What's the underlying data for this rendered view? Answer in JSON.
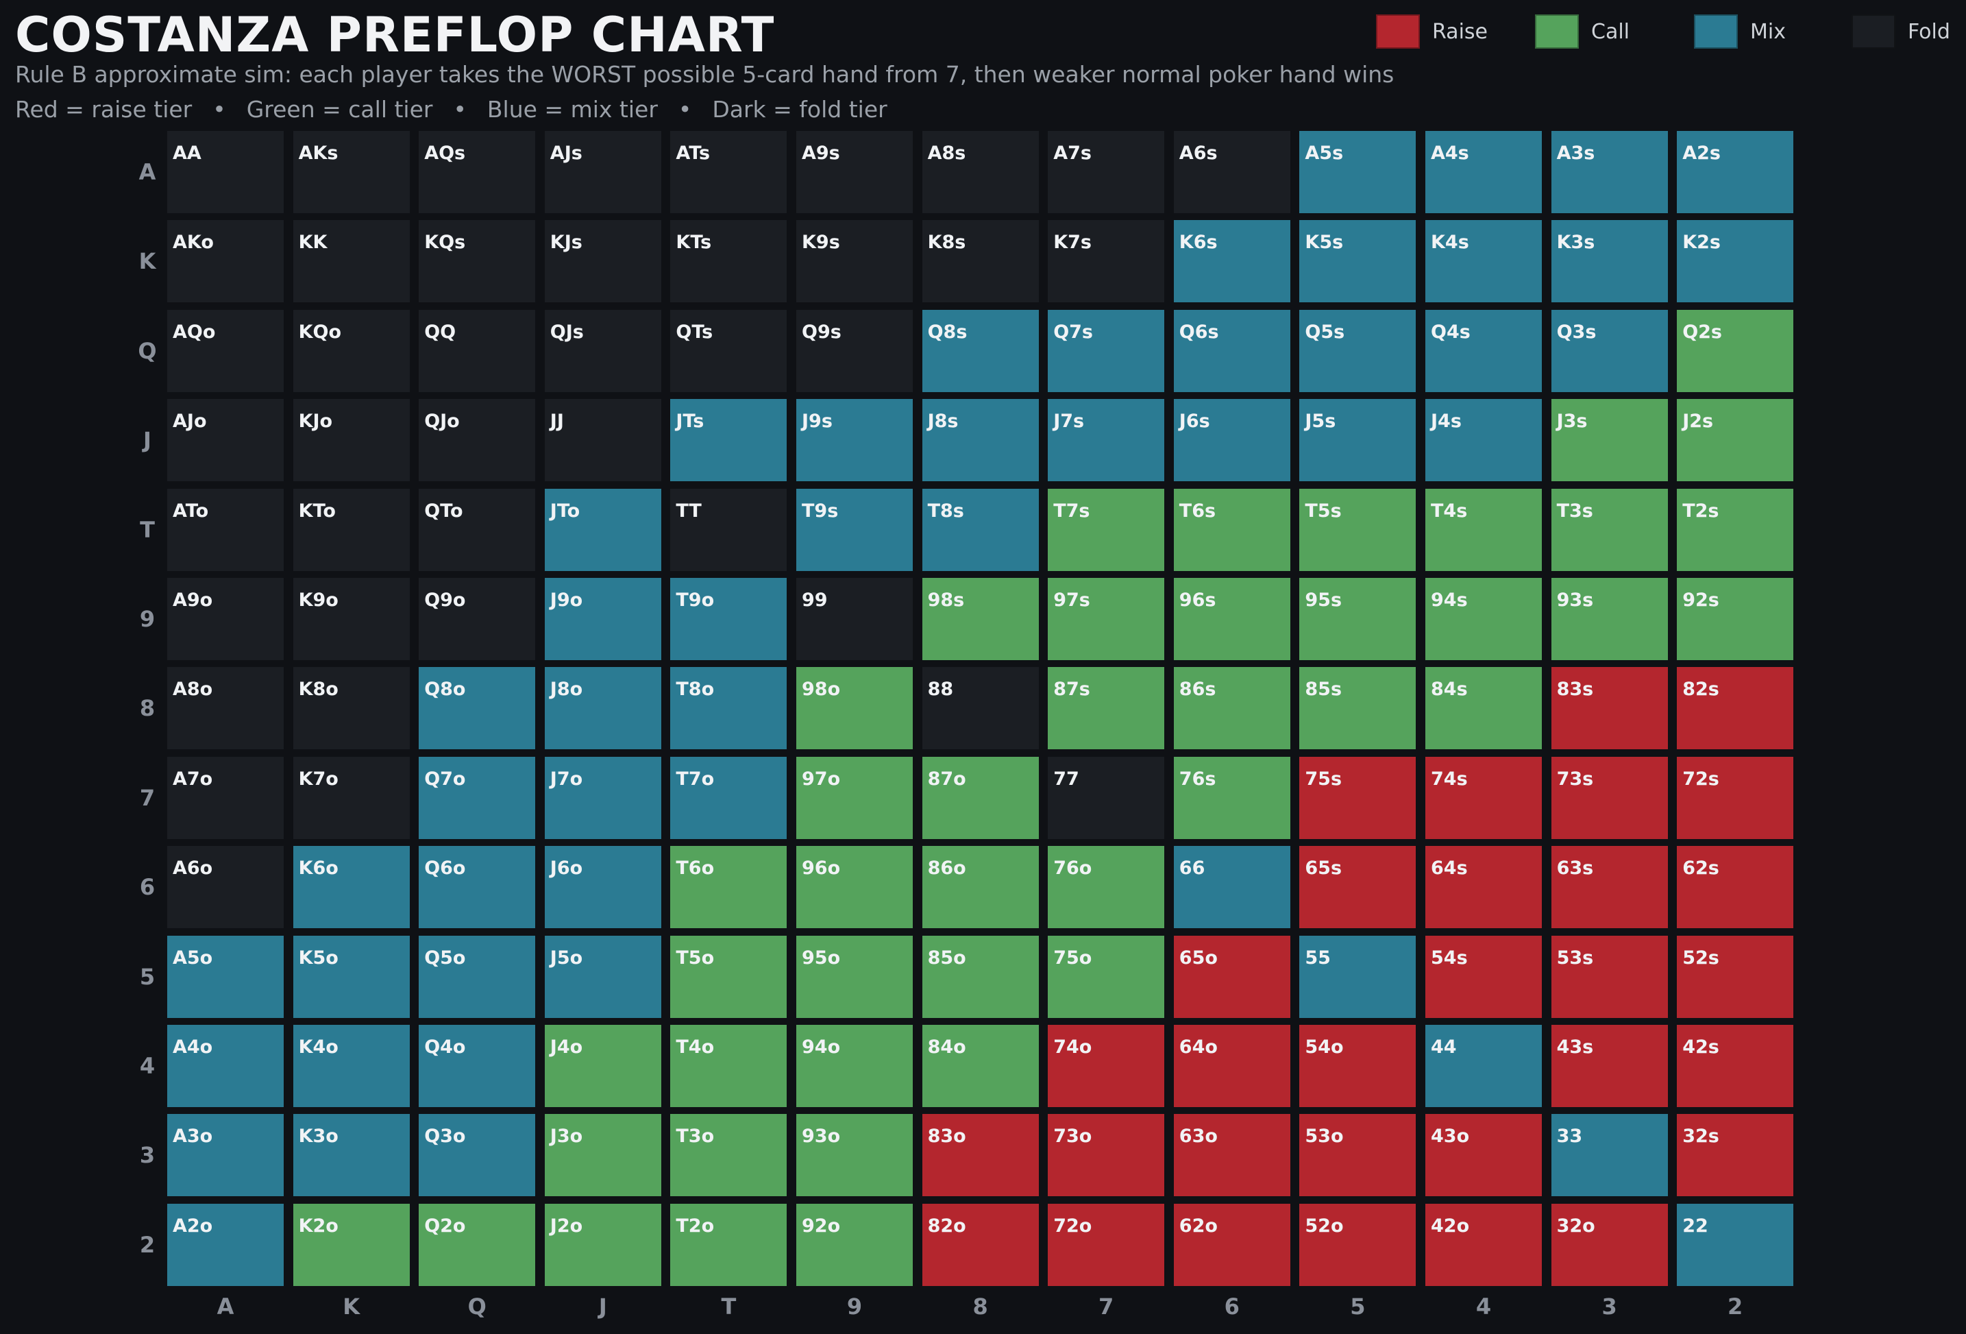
{
  "header": {
    "title": "COSTANZA PREFLOP CHART",
    "subtitle": "Rule B approximate sim: each player takes the WORST possible 5-card hand from 7, then weaker normal poker hand wins",
    "tier_desc": [
      "Red = raise tier",
      "Green = call tier",
      "Blue = mix tier",
      "Dark = fold tier"
    ],
    "separator": "•"
  },
  "legend": [
    {
      "key": "R",
      "label": "Raise"
    },
    {
      "key": "C",
      "label": "Call"
    },
    {
      "key": "M",
      "label": "Mix"
    },
    {
      "key": "F",
      "label": "Fold"
    }
  ],
  "colors": {
    "R": "#b4262e",
    "C": "#55a35c",
    "M": "#2b7b93",
    "F": "#1b1e23",
    "background": "#0f1115"
  },
  "chart_data": {
    "type": "heatmap",
    "title": "COSTANZA PREFLOP CHART",
    "row_labels": [
      "A",
      "K",
      "Q",
      "J",
      "T",
      "9",
      "8",
      "7",
      "6",
      "5",
      "4",
      "3",
      "2"
    ],
    "col_labels": [
      "A",
      "K",
      "Q",
      "J",
      "T",
      "9",
      "8",
      "7",
      "6",
      "5",
      "4",
      "3",
      "2"
    ],
    "tier_names": {
      "R": "Raise",
      "C": "Call",
      "M": "Mix",
      "F": "Fold"
    },
    "hands": [
      [
        "AA",
        "AKs",
        "AQs",
        "AJs",
        "ATs",
        "A9s",
        "A8s",
        "A7s",
        "A6s",
        "A5s",
        "A4s",
        "A3s",
        "A2s"
      ],
      [
        "AKo",
        "KK",
        "KQs",
        "KJs",
        "KTs",
        "K9s",
        "K8s",
        "K7s",
        "K6s",
        "K5s",
        "K4s",
        "K3s",
        "K2s"
      ],
      [
        "AQo",
        "KQo",
        "QQ",
        "QJs",
        "QTs",
        "Q9s",
        "Q8s",
        "Q7s",
        "Q6s",
        "Q5s",
        "Q4s",
        "Q3s",
        "Q2s"
      ],
      [
        "AJo",
        "KJo",
        "QJo",
        "JJ",
        "JTs",
        "J9s",
        "J8s",
        "J7s",
        "J6s",
        "J5s",
        "J4s",
        "J3s",
        "J2s"
      ],
      [
        "ATo",
        "KTo",
        "QTo",
        "JTo",
        "TT",
        "T9s",
        "T8s",
        "T7s",
        "T6s",
        "T5s",
        "T4s",
        "T3s",
        "T2s"
      ],
      [
        "A9o",
        "K9o",
        "Q9o",
        "J9o",
        "T9o",
        "99",
        "98s",
        "97s",
        "96s",
        "95s",
        "94s",
        "93s",
        "92s"
      ],
      [
        "A8o",
        "K8o",
        "Q8o",
        "J8o",
        "T8o",
        "98o",
        "88",
        "87s",
        "86s",
        "85s",
        "84s",
        "83s",
        "82s"
      ],
      [
        "A7o",
        "K7o",
        "Q7o",
        "J7o",
        "T7o",
        "97o",
        "87o",
        "77",
        "76s",
        "75s",
        "74s",
        "73s",
        "72s"
      ],
      [
        "A6o",
        "K6o",
        "Q6o",
        "J6o",
        "T6o",
        "96o",
        "86o",
        "76o",
        "66",
        "65s",
        "64s",
        "63s",
        "62s"
      ],
      [
        "A5o",
        "K5o",
        "Q5o",
        "J5o",
        "T5o",
        "95o",
        "85o",
        "75o",
        "65o",
        "55",
        "54s",
        "53s",
        "52s"
      ],
      [
        "A4o",
        "K4o",
        "Q4o",
        "J4o",
        "T4o",
        "94o",
        "84o",
        "74o",
        "64o",
        "54o",
        "44",
        "43s",
        "42s"
      ],
      [
        "A3o",
        "K3o",
        "Q3o",
        "J3o",
        "T3o",
        "93o",
        "83o",
        "73o",
        "63o",
        "53o",
        "43o",
        "33",
        "32s"
      ],
      [
        "A2o",
        "K2o",
        "Q2o",
        "J2o",
        "T2o",
        "92o",
        "82o",
        "72o",
        "62o",
        "52o",
        "42o",
        "32o",
        "22"
      ]
    ],
    "tiers": [
      [
        "F",
        "F",
        "F",
        "F",
        "F",
        "F",
        "F",
        "F",
        "F",
        "M",
        "M",
        "M",
        "M"
      ],
      [
        "F",
        "F",
        "F",
        "F",
        "F",
        "F",
        "F",
        "F",
        "M",
        "M",
        "M",
        "M",
        "M"
      ],
      [
        "F",
        "F",
        "F",
        "F",
        "F",
        "F",
        "M",
        "M",
        "M",
        "M",
        "M",
        "M",
        "C"
      ],
      [
        "F",
        "F",
        "F",
        "F",
        "M",
        "M",
        "M",
        "M",
        "M",
        "M",
        "M",
        "C",
        "C"
      ],
      [
        "F",
        "F",
        "F",
        "M",
        "F",
        "M",
        "M",
        "C",
        "C",
        "C",
        "C",
        "C",
        "C"
      ],
      [
        "F",
        "F",
        "F",
        "M",
        "M",
        "F",
        "C",
        "C",
        "C",
        "C",
        "C",
        "C",
        "C"
      ],
      [
        "F",
        "F",
        "M",
        "M",
        "M",
        "C",
        "F",
        "C",
        "C",
        "C",
        "C",
        "R",
        "R"
      ],
      [
        "F",
        "F",
        "M",
        "M",
        "M",
        "C",
        "C",
        "F",
        "C",
        "R",
        "R",
        "R",
        "R"
      ],
      [
        "F",
        "M",
        "M",
        "M",
        "C",
        "C",
        "C",
        "C",
        "M",
        "R",
        "R",
        "R",
        "R"
      ],
      [
        "M",
        "M",
        "M",
        "M",
        "C",
        "C",
        "C",
        "C",
        "R",
        "M",
        "R",
        "R",
        "R"
      ],
      [
        "M",
        "M",
        "M",
        "C",
        "C",
        "C",
        "C",
        "R",
        "R",
        "R",
        "M",
        "R",
        "R"
      ],
      [
        "M",
        "M",
        "M",
        "C",
        "C",
        "C",
        "R",
        "R",
        "R",
        "R",
        "R",
        "M",
        "R"
      ],
      [
        "M",
        "C",
        "C",
        "C",
        "C",
        "C",
        "R",
        "R",
        "R",
        "R",
        "R",
        "R",
        "M"
      ]
    ]
  }
}
